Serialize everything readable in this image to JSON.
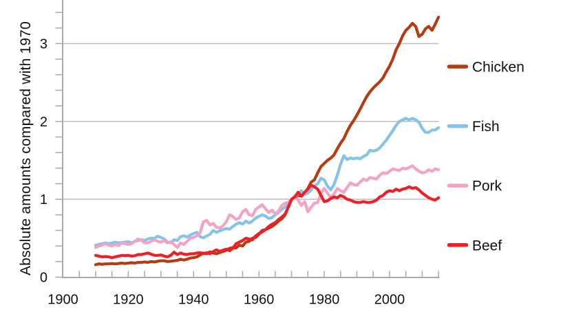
{
  "colors": {
    "background": "#ffffff",
    "axis": "#a7aaa9",
    "grid": "#bdbfbe",
    "text": "#111111",
    "chicken": "#b43c10",
    "fish": "#85c3e9",
    "pork": "#f5a3c5",
    "beef": "#ee2027"
  },
  "chart_data": {
    "type": "line",
    "title": "",
    "xlabel": "",
    "ylabel": "Absolute amounts compared with 1970",
    "xlim": [
      1900,
      2015.5
    ],
    "ylim": [
      0,
      3.56
    ],
    "x_major_ticks": [
      1900,
      1920,
      1940,
      1960,
      1980,
      2000
    ],
    "x_minor_tick_step": 5,
    "y_major_ticks": [
      0,
      1,
      2,
      3
    ],
    "y_minor_tick_step": 0.2,
    "y_gridlines": [
      1,
      2,
      3
    ],
    "grid": "horizontal-major-only",
    "legend_position": "right",
    "x_start": 1910,
    "x_step": 1,
    "x_end": 2015,
    "index_note": "values indexed to 1970 = 1",
    "series": [
      {
        "name": "Chicken",
        "color": "#b43c10",
        "values": [
          0.16,
          0.17,
          0.165,
          0.17,
          0.17,
          0.175,
          0.17,
          0.175,
          0.18,
          0.175,
          0.18,
          0.185,
          0.18,
          0.19,
          0.19,
          0.195,
          0.19,
          0.2,
          0.195,
          0.205,
          0.21,
          0.21,
          0.2,
          0.205,
          0.21,
          0.215,
          0.23,
          0.22,
          0.23,
          0.245,
          0.25,
          0.26,
          0.285,
          0.31,
          0.3,
          0.325,
          0.31,
          0.3,
          0.315,
          0.33,
          0.345,
          0.37,
          0.38,
          0.375,
          0.41,
          0.4,
          0.45,
          0.46,
          0.5,
          0.51,
          0.55,
          0.6,
          0.61,
          0.63,
          0.65,
          0.68,
          0.72,
          0.75,
          0.8,
          0.9,
          1.0,
          1.03,
          1.05,
          1.04,
          1.08,
          1.14,
          1.22,
          1.25,
          1.34,
          1.42,
          1.46,
          1.5,
          1.53,
          1.57,
          1.65,
          1.72,
          1.78,
          1.87,
          1.95,
          2.01,
          2.08,
          2.16,
          2.24,
          2.32,
          2.38,
          2.43,
          2.47,
          2.51,
          2.56,
          2.64,
          2.71,
          2.8,
          2.92,
          3.0,
          3.1,
          3.17,
          3.21,
          3.26,
          3.22,
          3.09,
          3.12,
          3.19,
          3.22,
          3.17,
          3.25,
          3.34
        ]
      },
      {
        "name": "Fish",
        "color": "#85c3e9",
        "values": [
          0.41,
          0.42,
          0.43,
          0.44,
          0.43,
          0.44,
          0.45,
          0.44,
          0.445,
          0.45,
          0.455,
          0.44,
          0.46,
          0.47,
          0.48,
          0.47,
          0.49,
          0.5,
          0.5,
          0.525,
          0.51,
          0.49,
          0.45,
          0.44,
          0.48,
          0.47,
          0.52,
          0.53,
          0.515,
          0.54,
          0.56,
          0.575,
          0.52,
          0.505,
          0.53,
          0.55,
          0.6,
          0.575,
          0.595,
          0.61,
          0.625,
          0.615,
          0.65,
          0.68,
          0.7,
          0.68,
          0.72,
          0.695,
          0.72,
          0.76,
          0.78,
          0.8,
          0.785,
          0.755,
          0.765,
          0.8,
          0.83,
          0.87,
          0.9,
          0.94,
          1.0,
          1.03,
          1.07,
          1.11,
          1.06,
          1.08,
          1.12,
          1.17,
          1.2,
          1.27,
          1.25,
          1.17,
          1.12,
          1.19,
          1.31,
          1.45,
          1.56,
          1.51,
          1.53,
          1.52,
          1.53,
          1.52,
          1.55,
          1.57,
          1.63,
          1.62,
          1.63,
          1.66,
          1.71,
          1.76,
          1.82,
          1.88,
          1.95,
          2.0,
          2.02,
          2.04,
          2.02,
          2.04,
          2.02,
          1.99,
          1.91,
          1.86,
          1.86,
          1.89,
          1.89,
          1.92
        ]
      },
      {
        "name": "Pork",
        "color": "#f5a3c5",
        "values": [
          0.38,
          0.4,
          0.41,
          0.43,
          0.41,
          0.4,
          0.42,
          0.405,
          0.44,
          0.43,
          0.42,
          0.43,
          0.46,
          0.49,
          0.47,
          0.44,
          0.44,
          0.46,
          0.48,
          0.46,
          0.45,
          0.47,
          0.44,
          0.455,
          0.42,
          0.38,
          0.44,
          0.42,
          0.46,
          0.5,
          0.51,
          0.53,
          0.57,
          0.71,
          0.73,
          0.67,
          0.69,
          0.64,
          0.63,
          0.66,
          0.71,
          0.8,
          0.78,
          0.74,
          0.76,
          0.84,
          0.87,
          0.8,
          0.79,
          0.87,
          0.9,
          0.93,
          0.88,
          0.83,
          0.86,
          0.81,
          0.85,
          0.92,
          0.95,
          0.96,
          1.0,
          1.04,
          0.99,
          0.92,
          0.97,
          0.84,
          0.9,
          0.95,
          0.96,
          1.08,
          1.14,
          1.08,
          1.02,
          1.07,
          1.14,
          1.11,
          1.09,
          1.15,
          1.21,
          1.19,
          1.18,
          1.22,
          1.26,
          1.24,
          1.28,
          1.27,
          1.26,
          1.31,
          1.34,
          1.33,
          1.36,
          1.39,
          1.38,
          1.37,
          1.4,
          1.39,
          1.41,
          1.43,
          1.39,
          1.36,
          1.34,
          1.35,
          1.38,
          1.36,
          1.39,
          1.38
        ]
      },
      {
        "name": "Beef",
        "color": "#ee2027",
        "values": [
          0.28,
          0.27,
          0.26,
          0.265,
          0.26,
          0.25,
          0.26,
          0.27,
          0.28,
          0.275,
          0.28,
          0.27,
          0.275,
          0.29,
          0.29,
          0.3,
          0.31,
          0.295,
          0.28,
          0.28,
          0.285,
          0.27,
          0.26,
          0.28,
          0.32,
          0.29,
          0.31,
          0.295,
          0.29,
          0.3,
          0.3,
          0.31,
          0.315,
          0.3,
          0.315,
          0.3,
          0.33,
          0.35,
          0.33,
          0.345,
          0.36,
          0.34,
          0.37,
          0.43,
          0.45,
          0.47,
          0.5,
          0.49,
          0.48,
          0.53,
          0.56,
          0.58,
          0.61,
          0.65,
          0.68,
          0.7,
          0.74,
          0.77,
          0.81,
          0.9,
          1.0,
          1.03,
          1.09,
          1.04,
          1.09,
          1.13,
          1.18,
          1.16,
          1.13,
          1.05,
          0.97,
          0.98,
          1.01,
          1.03,
          1.02,
          1.05,
          1.03,
          1.0,
          0.99,
          0.97,
          0.96,
          0.96,
          0.97,
          0.96,
          0.96,
          0.97,
          0.99,
          1.03,
          1.05,
          1.09,
          1.11,
          1.1,
          1.13,
          1.11,
          1.13,
          1.14,
          1.16,
          1.14,
          1.15,
          1.12,
          1.08,
          1.05,
          1.02,
          1.0,
          0.99,
          1.02
        ]
      }
    ]
  }
}
